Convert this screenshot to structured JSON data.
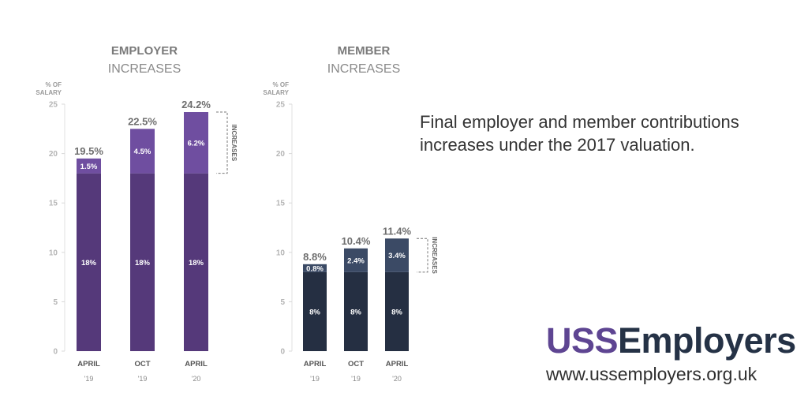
{
  "description": "Final employer and member contributions increases under the 2017 valuation.",
  "brand": {
    "name_part1": "USS",
    "name_part2": "Employers",
    "url": "www.ussemployers.org.uk",
    "color_part1": "#5e4592",
    "color_part2": "#253246"
  },
  "chart_data": [
    {
      "type": "bar",
      "stacked": true,
      "title": "EMPLOYER",
      "subtitle": "INCREASES",
      "ylabel_line1": "% OF",
      "ylabel_line2": "SALARY",
      "ylim": [
        0,
        25
      ],
      "yticks": [
        0,
        5,
        10,
        15,
        20,
        25
      ],
      "categories": [
        {
          "main": "APRIL",
          "sub": "'19"
        },
        {
          "main": "OCT",
          "sub": "'19"
        },
        {
          "main": "APRIL",
          "sub": "'20"
        }
      ],
      "series": [
        {
          "name": "base",
          "values": [
            18,
            18,
            18
          ],
          "labels": [
            "18%",
            "18%",
            "18%"
          ],
          "color": "#55397a"
        },
        {
          "name": "increase",
          "values": [
            1.5,
            4.5,
            6.2
          ],
          "labels": [
            "1.5%",
            "4.5%",
            "6.2%"
          ],
          "color": "#6f4ea0"
        }
      ],
      "totals": [
        "19.5%",
        "22.5%",
        "24.2%"
      ],
      "bracket_label": "INCREASES"
    },
    {
      "type": "bar",
      "stacked": true,
      "title": "MEMBER",
      "subtitle": "INCREASES",
      "ylabel_line1": "% OF",
      "ylabel_line2": "SALARY",
      "ylim": [
        0,
        25
      ],
      "yticks": [
        0,
        5,
        10,
        15,
        20,
        25
      ],
      "categories": [
        {
          "main": "APRIL",
          "sub": "'19"
        },
        {
          "main": "OCT",
          "sub": "'19"
        },
        {
          "main": "APRIL",
          "sub": "'20"
        }
      ],
      "series": [
        {
          "name": "base",
          "values": [
            8,
            8,
            8
          ],
          "labels": [
            "8%",
            "8%",
            "8%"
          ],
          "color": "#252f42"
        },
        {
          "name": "increase",
          "values": [
            0.8,
            2.4,
            3.4
          ],
          "labels": [
            "0.8%",
            "2.4%",
            "3.4%"
          ],
          "color": "#3b4a65"
        }
      ],
      "totals": [
        "8.8%",
        "10.4%",
        "11.4%"
      ],
      "bracket_label": "INCREASES"
    }
  ]
}
